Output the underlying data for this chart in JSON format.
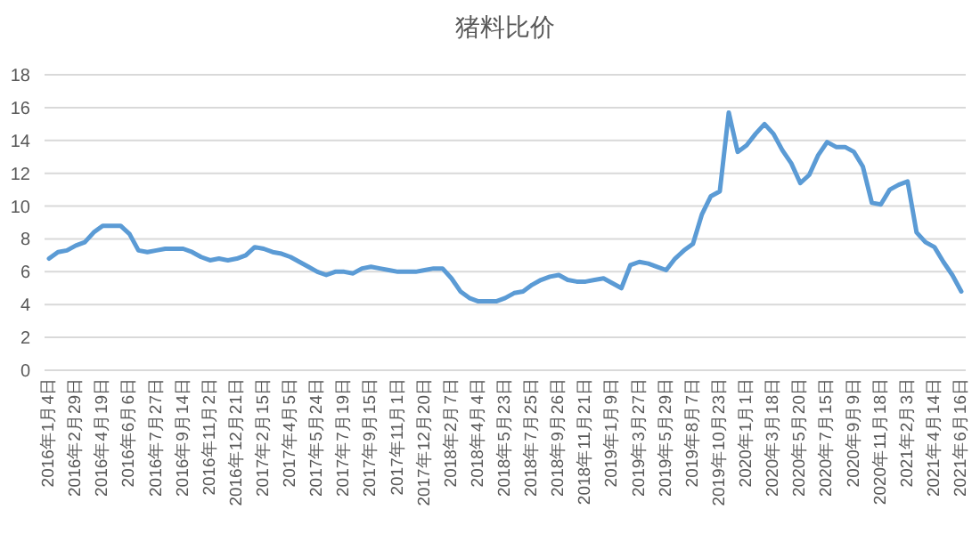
{
  "chart_data": {
    "type": "line",
    "title": "猪料比价",
    "categories": [
      "2016年1月4日",
      null,
      null,
      "2016年2月29日",
      null,
      null,
      "2016年4月19日",
      null,
      null,
      "2016年6月6日",
      null,
      null,
      "2016年7月27日",
      null,
      null,
      "2016年9月14日",
      null,
      null,
      "2016年11月2日",
      null,
      null,
      "2016年12月21日",
      null,
      null,
      "2017年2月15日",
      null,
      null,
      "2017年4月5日",
      null,
      null,
      "2017年5月24日",
      null,
      null,
      "2017年7月19日",
      null,
      null,
      "2017年9月15日",
      null,
      null,
      "2017年11月1日",
      null,
      null,
      "2017年12月20日",
      null,
      null,
      "2018年2月7日",
      null,
      null,
      "2018年4月4日",
      null,
      null,
      "2018年5月23日",
      null,
      null,
      "2018年7月25日",
      null,
      null,
      "2018年9月26日",
      null,
      null,
      "2018年11月21日",
      null,
      null,
      "2019年1月9日",
      null,
      null,
      "2019年3月27日",
      null,
      null,
      "2019年5月29日",
      null,
      null,
      "2019年8月7日",
      null,
      null,
      "2019年10月23日",
      null,
      null,
      "2020年1月1日",
      null,
      null,
      "2020年3月18日",
      null,
      null,
      "2020年5月20日",
      null,
      null,
      "2020年7月15日",
      null,
      null,
      "2020年9月9日",
      null,
      null,
      "2020年11月18日",
      null,
      null,
      "2021年2月3日",
      null,
      null,
      "2021年4月14日",
      null,
      null,
      "2021年6月16日"
    ],
    "series": [
      {
        "color": "#5b9bd5",
        "values": [
          6.8,
          7.2,
          7.3,
          7.6,
          7.8,
          8.4,
          8.8,
          8.8,
          8.8,
          8.3,
          7.3,
          7.2,
          7.3,
          7.4,
          7.4,
          7.4,
          7.2,
          6.9,
          6.7,
          6.8,
          6.7,
          6.8,
          7.0,
          7.5,
          7.4,
          7.2,
          7.1,
          6.9,
          6.6,
          6.3,
          6.0,
          5.8,
          6.0,
          6.0,
          5.9,
          6.2,
          6.3,
          6.2,
          6.1,
          6.0,
          6.0,
          6.0,
          6.1,
          6.2,
          6.2,
          5.6,
          4.8,
          4.4,
          4.2,
          4.2,
          4.2,
          4.4,
          4.7,
          4.8,
          5.2,
          5.5,
          5.7,
          5.8,
          5.5,
          5.4,
          5.4,
          5.5,
          5.6,
          5.3,
          5.0,
          6.4,
          6.6,
          6.5,
          6.3,
          6.1,
          6.8,
          7.3,
          7.7,
          9.5,
          10.6,
          10.9,
          15.7,
          13.3,
          13.7,
          14.4,
          15.0,
          14.4,
          13.4,
          12.6,
          11.4,
          11.9,
          13.1,
          13.9,
          13.6,
          13.6,
          13.3,
          12.4,
          10.2,
          10.1,
          11.0,
          11.3,
          11.5,
          8.4,
          7.8,
          7.5,
          6.6,
          5.8,
          4.8
        ]
      }
    ],
    "ylim": [
      0,
      18
    ],
    "yticks": [
      0,
      2,
      4,
      6,
      8,
      10,
      12,
      14,
      16,
      18
    ],
    "grid": "y"
  }
}
